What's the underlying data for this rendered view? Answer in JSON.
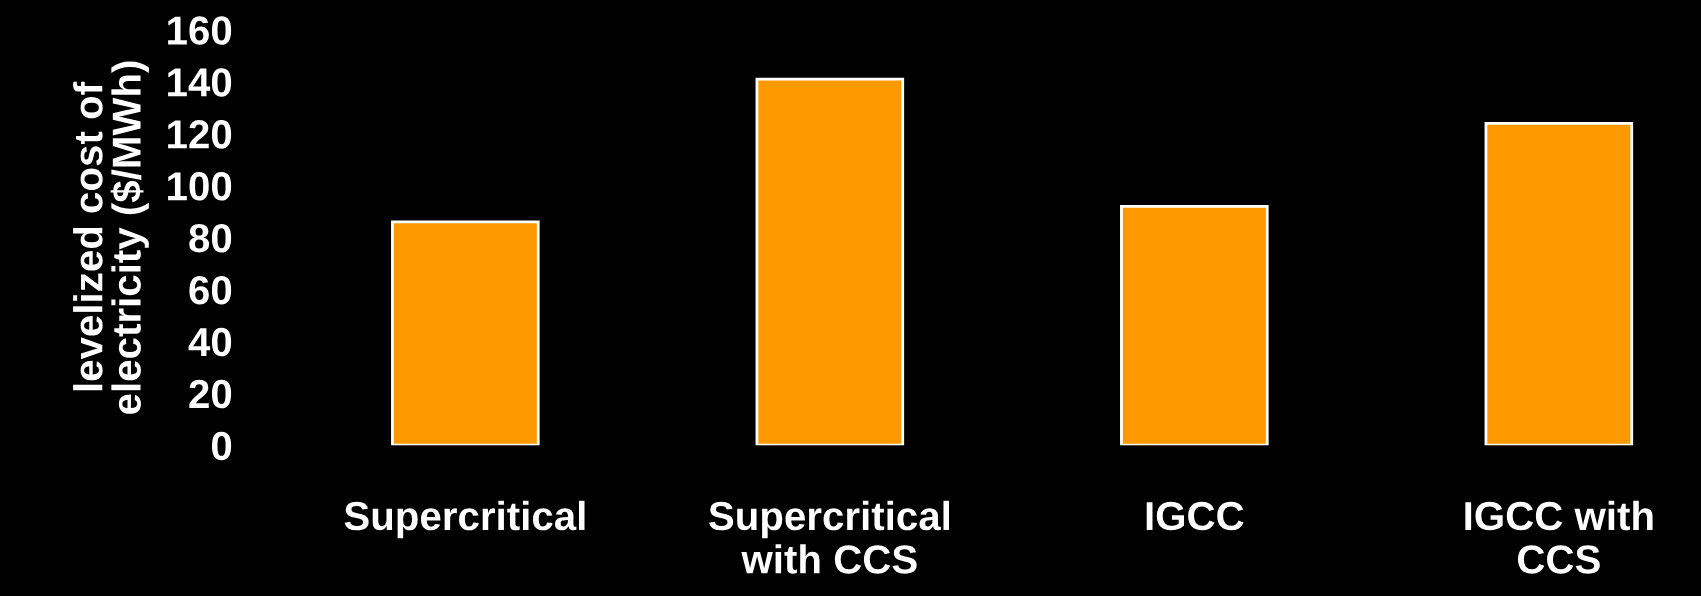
{
  "chart_data": {
    "type": "bar",
    "ylabel": "levelized cost of\nelectricity ($/MWh)",
    "categories": [
      "Supercritical",
      "Supercritical\nwith CCS",
      "IGCC",
      "IGCC with\nCCS"
    ],
    "values": [
      86,
      141,
      92,
      124
    ],
    "color": "#ff9900",
    "ylim": [
      0,
      160
    ],
    "yticks": [
      0,
      20,
      40,
      60,
      80,
      100,
      120,
      140,
      160
    ],
    "grid": false
  }
}
